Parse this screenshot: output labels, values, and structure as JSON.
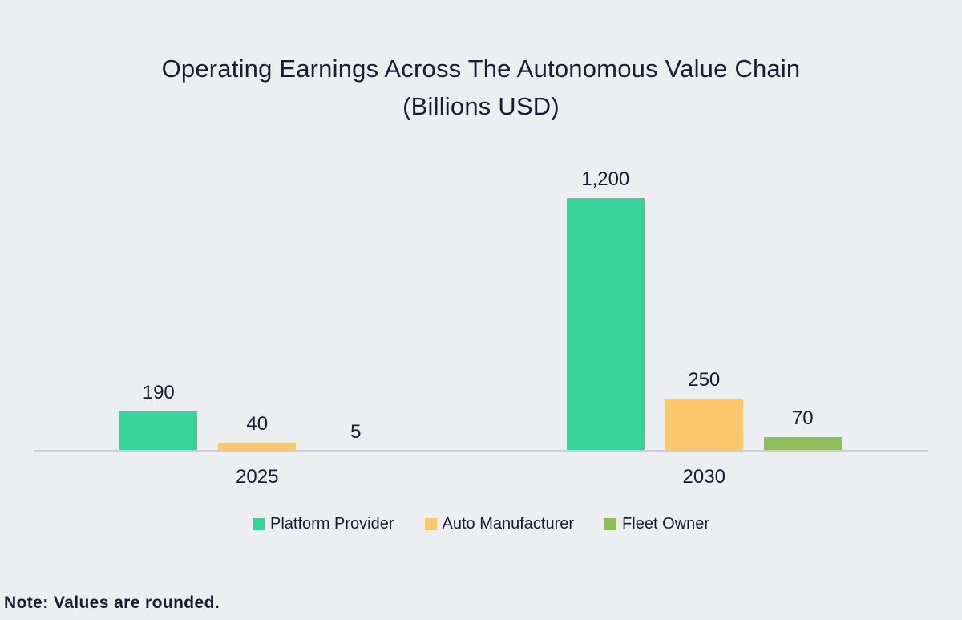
{
  "title": {
    "line1": "Operating Earnings Across The Autonomous Value Chain",
    "line2": "(Billions USD)"
  },
  "note": "Note: Values are rounded.",
  "colors": {
    "background": "#EDEEF2",
    "axis_line": "#CBCCDE",
    "text": "#1A1B35",
    "platform_provider": "#38D399",
    "auto_manufacturer": "#FAC96D",
    "fleet_owner": "#8CBE5C"
  },
  "chart_data": {
    "type": "bar",
    "title": "Operating Earnings Across The Autonomous Value Chain (Billions USD)",
    "categories": [
      "2025",
      "2030"
    ],
    "series": [
      {
        "name": "Platform Provider",
        "color": "#38D399",
        "values": [
          190,
          1200
        ],
        "value_labels": [
          "190",
          "1,200"
        ]
      },
      {
        "name": "Auto Manufacturer",
        "color": "#FAC96D",
        "values": [
          40,
          250
        ],
        "value_labels": [
          "40",
          "250"
        ]
      },
      {
        "name": "Fleet Owner",
        "color": "#8CBE5C",
        "values": [
          5,
          70
        ],
        "value_labels": [
          "5",
          "70"
        ]
      }
    ],
    "xlabel": "",
    "ylabel": "",
    "value_axis_visible": false,
    "grid": false,
    "data_labels_shown": true,
    "legend_position": "bottom",
    "footnote": "Note: Values are rounded."
  }
}
